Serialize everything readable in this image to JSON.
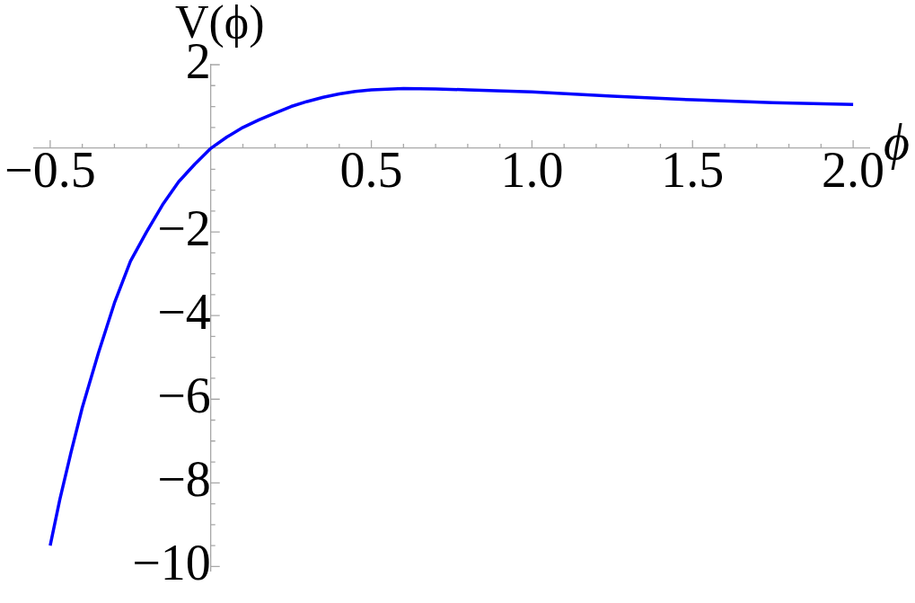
{
  "chart_data": {
    "type": "line",
    "xlabel": "ϕ",
    "ylabel": "V(ϕ)",
    "x": [
      -0.5,
      -0.47,
      -0.436,
      -0.4,
      -0.35,
      -0.3,
      -0.25,
      -0.2,
      -0.15,
      -0.1,
      -0.05,
      0,
      0.05,
      0.1,
      0.15,
      0.2,
      0.25,
      0.3,
      0.35,
      0.4,
      0.45,
      0.5,
      0.6,
      0.7,
      0.8,
      1.0,
      1.25,
      1.5,
      1.75,
      2.0
    ],
    "values": [
      -9.5,
      -8.4,
      -7.3,
      -6.2,
      -4.9,
      -3.7,
      -2.7,
      -2.0,
      -1.35,
      -0.8,
      -0.38,
      0,
      0.27,
      0.5,
      0.68,
      0.84,
      1.0,
      1.12,
      1.22,
      1.3,
      1.36,
      1.4,
      1.43,
      1.42,
      1.4,
      1.35,
      1.25,
      1.16,
      1.09,
      1.05
    ],
    "color": "#0000ff",
    "marker": "none",
    "xlim": [
      -0.55,
      2.05
    ],
    "ylim": [
      -10.1,
      2
    ],
    "xticks": [
      {
        "value": -0.5,
        "label": "−0.5"
      },
      {
        "value": -0.4,
        "label": null
      },
      {
        "value": -0.3,
        "label": null
      },
      {
        "value": -0.2,
        "label": null
      },
      {
        "value": -0.1,
        "label": null
      },
      {
        "value": 0.1,
        "label": null
      },
      {
        "value": 0.2,
        "label": null
      },
      {
        "value": 0.3,
        "label": null
      },
      {
        "value": 0.4,
        "label": null
      },
      0.5,
      {
        "value": 0.6,
        "label": null
      },
      {
        "value": 0.7,
        "label": null
      },
      {
        "value": 0.8,
        "label": null
      },
      {
        "value": 0.9,
        "label": null
      },
      {
        "value": 1,
        "label": "1.0"
      },
      {
        "value": 1.1,
        "label": null
      },
      {
        "value": 1.2,
        "label": null
      },
      {
        "value": 1.3,
        "label": null
      },
      {
        "value": 1.4,
        "label": null
      },
      1.5,
      {
        "value": 1.6,
        "label": null
      },
      {
        "value": 1.7,
        "label": null
      },
      {
        "value": 1.8,
        "label": null
      },
      {
        "value": 1.9,
        "label": null
      },
      {
        "value": 2,
        "label": "2.0"
      }
    ],
    "yticks": [
      2,
      {
        "value": 1.5,
        "label": null
      },
      {
        "value": 1,
        "label": null
      },
      {
        "value": 0.5,
        "label": null
      },
      {
        "value": -0.5,
        "label": null
      },
      {
        "value": -1,
        "label": null
      },
      {
        "value": -1.5,
        "label": null
      },
      {
        "value": -2,
        "label": "−2"
      },
      {
        "value": -2.5,
        "label": null
      },
      {
        "value": -3,
        "label": null
      },
      {
        "value": -3.5,
        "label": null
      },
      {
        "value": -4,
        "label": "−4"
      },
      {
        "value": -4.5,
        "label": null
      },
      {
        "value": -5,
        "label": null
      },
      {
        "value": -5.5,
        "label": null
      },
      {
        "value": -6,
        "label": "−6"
      },
      {
        "value": -6.5,
        "label": null
      },
      {
        "value": -7,
        "label": null
      },
      {
        "value": -7.5,
        "label": null
      },
      {
        "value": -8,
        "label": "−8"
      },
      {
        "value": -8.5,
        "label": null
      },
      {
        "value": -9,
        "label": null
      },
      {
        "value": -9.5,
        "label": null
      },
      {
        "value": -10,
        "label": "−10"
      }
    ]
  }
}
